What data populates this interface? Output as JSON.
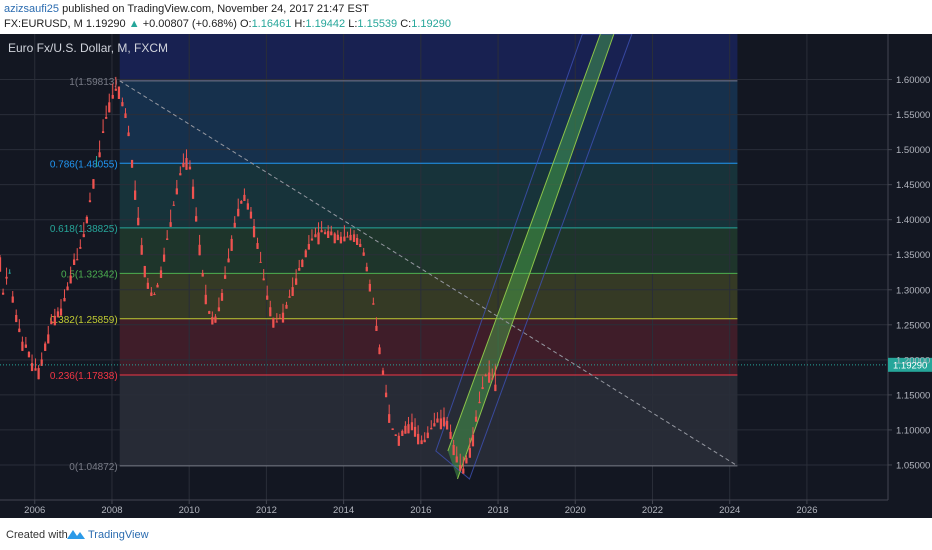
{
  "header": {
    "author": "azizsaufi25",
    "published": "published on TradingView.com, November 24, 2017 21:47 EST",
    "symbol": "FX:EURUSD, M",
    "last": "1.19290",
    "change": "+0.00807 (+0.68%)",
    "o_label": "O:",
    "o": "1.16461",
    "h_label": "H:",
    "h": "1.19442",
    "l_label": "L:",
    "l": "1.15539",
    "c_label": "C:",
    "c": "1.19290"
  },
  "footer": {
    "created_with": "Created with",
    "brand": "TradingView"
  },
  "colors": {
    "background": "#131722",
    "up": "#26a69a",
    "down": "#ef5350",
    "price_tag": "#26a69a",
    "trendline": "#9598a1"
  },
  "chart_data": {
    "type": "candlestick",
    "title": "Euro Fx/U.S. Dollar, M, FXCM",
    "x_ticks": [
      "2006",
      "2008",
      "2010",
      "2012",
      "2014",
      "2016",
      "2018",
      "2020",
      "2022",
      "2024",
      "2026"
    ],
    "y_ticks": [
      "1.60000",
      "1.55000",
      "1.50000",
      "1.45000",
      "1.40000",
      "1.35000",
      "1.30000",
      "1.25000",
      "1.20000",
      "1.15000",
      "1.10000",
      "1.05000"
    ],
    "ylim": [
      1.0,
      1.665
    ],
    "xlim": [
      2005.1,
      2028.1
    ],
    "current_price": 1.1929,
    "current_price_label": "1.19290",
    "fibonacci": {
      "x_start": 2008.2,
      "x_end": 2024.2,
      "levels": [
        {
          "label": "1(1.59813)",
          "ratio": 1,
          "price": 1.59813,
          "color": "#787b86"
        },
        {
          "label": "0.786(1.48055)",
          "ratio": 0.786,
          "price": 1.48055,
          "color": "#2196f3"
        },
        {
          "label": "0.618(1.38825)",
          "ratio": 0.618,
          "price": 1.38825,
          "color": "#26a69a"
        },
        {
          "label": "0.5(1.32342)",
          "ratio": 0.5,
          "price": 1.32342,
          "color": "#4caf50"
        },
        {
          "label": "0.382(1.25859)",
          "ratio": 0.382,
          "price": 1.25859,
          "color": "#c0ca33"
        },
        {
          "label": "0.236(1.17838)",
          "ratio": 0.236,
          "price": 1.17838,
          "color": "#f23645"
        },
        {
          "label": "0(1.04872)",
          "ratio": 0,
          "price": 1.04872,
          "color": "#787b86"
        }
      ]
    },
    "trendline": {
      "x1": 2008.2,
      "y1": 1.59813,
      "x2": 2024.2,
      "y2": 1.04872
    },
    "channel": {
      "lower_start": [
        2016.95,
        1.03
      ],
      "lower_end": [
        2021.0,
        1.665
      ],
      "upper_start": [
        2016.7,
        1.07
      ],
      "upper_end": [
        2020.65,
        1.665
      ]
    },
    "ohlc": [
      [
        2005.1,
        1.3464,
        1.3497,
        1.3268,
        1.3258
      ],
      [
        2005.18,
        1.2958,
        1.3016,
        1.2961,
        1.293
      ],
      [
        2005.27,
        1.3185,
        1.3316,
        1.3073,
        1.3159
      ],
      [
        2005.35,
        1.324,
        1.3293,
        1.3229,
        1.3244
      ],
      [
        2005.43,
        1.2904,
        1.2982,
        1.2916,
        1.2816
      ],
      [
        2005.52,
        1.264,
        1.2719,
        1.2672,
        1.2539
      ],
      [
        2005.6,
        1.2446,
        1.2581,
        1.2434,
        1.2396
      ],
      [
        2005.68,
        1.2259,
        1.2332,
        1.2296,
        1.2128
      ],
      [
        2005.77,
        1.2219,
        1.2327,
        1.2264,
        1.2172
      ],
      [
        2005.85,
        1.2112,
        1.2126,
        1.2046,
        1.2036
      ],
      [
        2005.93,
        1.1954,
        1.2076,
        1.1997,
        1.184
      ],
      [
        2006.02,
        1.188,
        1.202,
        1.1942,
        1.1846
      ],
      [
        2006.1,
        1.1883,
        1.1925,
        1.1826,
        1.1723
      ],
      [
        2006.18,
        1.2006,
        1.2106,
        1.209,
        1.1914
      ],
      [
        2006.27,
        1.2233,
        1.2261,
        1.2168,
        1.2127
      ],
      [
        2006.35,
        1.2363,
        1.2484,
        1.2499,
        1.2233
      ],
      [
        2006.43,
        1.2554,
        1.2653,
        1.2592,
        1.2509
      ],
      [
        2006.52,
        1.2627,
        1.2728,
        1.2726,
        1.2493
      ],
      [
        2006.6,
        1.2692,
        1.275,
        1.2667,
        1.2607
      ],
      [
        2006.68,
        1.2732,
        1.2867,
        1.2888,
        1.2631
      ],
      [
        2006.77,
        1.2883,
        1.3007,
        1.3013,
        1.2835
      ],
      [
        2006.85,
        1.3047,
        1.3108,
        1.3109,
        1.2993
      ],
      [
        2006.93,
        1.3202,
        1.3331,
        1.3318,
        1.309
      ],
      [
        2007.02,
        1.3433,
        1.3519,
        1.3412,
        1.3354
      ],
      [
        2007.1,
        1.3436,
        1.3594,
        1.3483,
        1.3421
      ],
      [
        2007.18,
        1.3609,
        1.372,
        1.3663,
        1.3585
      ],
      [
        2007.27,
        1.3794,
        1.3965,
        1.3864,
        1.3751
      ],
      [
        2007.35,
        1.404,
        1.4063,
        1.4012,
        1.3948
      ],
      [
        2007.43,
        1.4277,
        1.4387,
        1.4372,
        1.425
      ],
      [
        2007.52,
        1.4579,
        1.4567,
        1.4654,
        1.4442
      ],
      [
        2007.6,
        1.4766,
        1.4909,
        1.4802,
        1.4771
      ],
      [
        2007.68,
        1.4962,
        1.513,
        1.5073,
        1.4891
      ],
      [
        2007.77,
        1.5262,
        1.5433,
        1.5379,
        1.5237
      ],
      [
        2007.85,
        1.5465,
        1.5629,
        1.5502,
        1.544
      ],
      [
        2007.93,
        1.5675,
        1.5799,
        1.5671,
        1.5531
      ],
      [
        2008.02,
        1.578,
        1.5944,
        1.5874,
        1.5727
      ],
      [
        2008.1,
        1.5868,
        1.6038,
        1.5919,
        1.584
      ],
      [
        2008.18,
        1.5901,
        1.5879,
        1.5931,
        1.5723
      ],
      [
        2008.27,
        1.5678,
        1.5743,
        1.5648,
        1.5619
      ],
      [
        2008.35,
        1.5517,
        1.5592,
        1.5512,
        1.5451
      ],
      [
        2008.43,
        1.5245,
        1.5341,
        1.5213,
        1.5193
      ],
      [
        2008.52,
        1.4853,
        1.4833,
        1.4871,
        1.4741
      ],
      [
        2008.6,
        1.4417,
        1.456,
        1.4425,
        1.4283
      ],
      [
        2008.68,
        1.4027,
        1.4181,
        1.3969,
        1.392
      ],
      [
        2008.77,
        1.3637,
        1.3741,
        1.3598,
        1.35
      ],
      [
        2008.85,
        1.334,
        1.3323,
        1.341,
        1.3179
      ],
      [
        2008.93,
        1.31,
        1.3169,
        1.3066,
        1.3013
      ],
      [
        2009.02,
        1.2961,
        1.3039,
        1.3015,
        1.2912
      ],
      [
        2009.1,
        1.2939,
        1.2964,
        1.2932,
        1.293
      ],
      [
        2009.18,
        1.3071,
        1.3098,
        1.3041,
        1.3033
      ],
      [
        2009.27,
        1.3278,
        1.3332,
        1.3304,
        1.3169
      ],
      [
        2009.35,
        1.3503,
        1.36,
        1.3477,
        1.34
      ],
      [
        2009.43,
        1.3732,
        1.3852,
        1.3787,
        1.3711
      ],
      [
        2009.52,
        1.3965,
        1.4144,
        1.4034,
        1.3898
      ],
      [
        2009.6,
        1.4213,
        1.4265,
        1.4222,
        1.4198
      ],
      [
        2009.68,
        1.4447,
        1.4567,
        1.4512,
        1.4361
      ],
      [
        2009.77,
        1.4664,
        1.4761,
        1.466,
        1.4633
      ],
      [
        2009.85,
        1.4811,
        1.4946,
        1.4827,
        1.475
      ],
      [
        2009.93,
        1.488,
        1.5003,
        1.4859,
        1.4712
      ],
      [
        2010.02,
        1.4756,
        1.4848,
        1.4766,
        1.4717
      ],
      [
        2010.1,
        1.4471,
        1.4576,
        1.4375,
        1.4298
      ],
      [
        2010.18,
        1.4051,
        1.4177,
        1.4098,
        1.3973
      ],
      [
        2010.27,
        1.3642,
        1.3783,
        1.3638,
        1.3492
      ],
      [
        2010.35,
        1.3238,
        1.3284,
        1.3293,
        1.3188
      ],
      [
        2010.43,
        1.2928,
        1.3072,
        1.2953,
        1.2794
      ],
      [
        2010.52,
        1.2696,
        1.27,
        1.2691,
        1.2656
      ],
      [
        2010.6,
        1.2612,
        1.2691,
        1.2573,
        1.2504
      ],
      [
        2010.68,
        1.2618,
        1.2653,
        1.2631,
        1.253
      ],
      [
        2010.77,
        1.2749,
        1.289,
        1.2767,
        1.2694
      ],
      [
        2010.85,
        1.2954,
        1.3011,
        1.2908,
        1.2843
      ],
      [
        2010.93,
        1.3208,
        1.3335,
        1.3275,
        1.3156
      ],
      [
        2011.02,
        1.3446,
        1.359,
        1.3476,
        1.3391
      ],
      [
        2011.1,
        1.3726,
        1.3778,
        1.3663,
        1.3555
      ],
      [
        2011.18,
        1.3955,
        1.4051,
        1.4,
        1.3888
      ],
      [
        2011.27,
        1.4155,
        1.4301,
        1.4182,
        1.4048
      ],
      [
        2011.35,
        1.4267,
        1.428,
        1.4336,
        1.4228
      ],
      [
        2011.43,
        1.4354,
        1.4446,
        1.4284,
        1.4267
      ],
      [
        2011.52,
        1.4234,
        1.4298,
        1.4291,
        1.4144
      ],
      [
        2011.6,
        1.4115,
        1.4181,
        1.4102,
        1.4016
      ],
      [
        2011.68,
        1.391,
        1.401,
        1.3918,
        1.3749
      ],
      [
        2011.77,
        1.3667,
        1.3743,
        1.3704,
        1.3583
      ],
      [
        2011.85,
        1.3398,
        1.3541,
        1.3452,
        1.3388
      ],
      [
        2011.93,
        1.3161,
        1.3295,
        1.3153,
        1.3135
      ],
      [
        2012.02,
        1.2917,
        1.3059,
        1.2878,
        1.2858
      ],
      [
        2012.1,
        1.2751,
        1.2843,
        1.2708,
        1.2621
      ],
      [
        2012.18,
        1.2601,
        1.2601,
        1.268,
        1.2459
      ],
      [
        2012.27,
        1.2547,
        1.2667,
        1.2576,
        1.2537
      ],
      [
        2012.35,
        1.26,
        1.2654,
        1.2684,
        1.2588
      ],
      [
        2012.43,
        1.2673,
        1.28,
        1.2699,
        1.2532
      ],
      [
        2012.52,
        1.2784,
        1.2828,
        1.2737,
        1.273
      ],
      [
        2012.6,
        1.2906,
        1.3002,
        1.2949,
        1.2886
      ],
      [
        2012.68,
        1.3038,
        1.3176,
        1.3113,
        1.2912
      ],
      [
        2012.77,
        1.3162,
        1.3293,
        1.3189,
        1.3071
      ],
      [
        2012.85,
        1.3311,
        1.3426,
        1.3392,
        1.3272
      ],
      [
        2012.93,
        1.3426,
        1.3441,
        1.3453,
        1.3324
      ],
      [
        2013.02,
        1.3562,
        1.3581,
        1.3569,
        1.3464
      ],
      [
        2013.1,
        1.3653,
        1.3781,
        1.3713,
        1.3573
      ],
      [
        2013.18,
        1.3731,
        1.3863,
        1.3778,
        1.3702
      ],
      [
        2013.27,
        1.3792,
        1.3887,
        1.3805,
        1.375
      ],
      [
        2013.35,
        1.3818,
        1.3963,
        1.3844,
        1.3649
      ],
      [
        2013.43,
        1.3851,
        1.398,
        1.3863,
        1.3821
      ],
      [
        2013.52,
        1.3822,
        1.3863,
        1.3931,
        1.3793
      ],
      [
        2013.6,
        1.3837,
        1.3921,
        1.3918,
        1.3739
      ],
      [
        2013.68,
        1.3831,
        1.3913,
        1.3911,
        1.3778
      ],
      [
        2013.77,
        1.3803,
        1.3822,
        1.3842,
        1.3664
      ],
      [
        2013.85,
        1.3785,
        1.3849,
        1.3737,
        1.3709
      ],
      [
        2013.93,
        1.3757,
        1.3825,
        1.3749,
        1.3662
      ],
      [
        2014.02,
        1.3759,
        1.392,
        1.3791,
        1.3691
      ],
      [
        2014.1,
        1.376,
        1.3829,
        1.3768,
        1.3745
      ],
      [
        2014.18,
        1.3783,
        1.3876,
        1.384,
        1.3706
      ],
      [
        2014.27,
        1.3791,
        1.3851,
        1.3862,
        1.3683
      ],
      [
        2014.35,
        1.3739,
        1.3794,
        1.374,
        1.3639
      ],
      [
        2014.43,
        1.3654,
        1.3724,
        1.3686,
        1.361
      ],
      [
        2014.52,
        1.3533,
        1.3597,
        1.3576,
        1.3485
      ],
      [
        2014.6,
        1.3327,
        1.3386,
        1.3321,
        1.3263
      ],
      [
        2014.68,
        1.3083,
        1.3146,
        1.3085,
        1.2975
      ],
      [
        2014.77,
        1.2807,
        1.2888,
        1.2814,
        1.2787
      ],
      [
        2014.85,
        1.2485,
        1.2607,
        1.2525,
        1.2412
      ],
      [
        2014.93,
        1.2178,
        1.222,
        1.2158,
        1.2081
      ],
      [
        2015.02,
        1.1849,
        1.1887,
        1.1927,
        1.1789
      ],
      [
        2015.1,
        1.1532,
        1.1644,
        1.16,
        1.1467
      ],
      [
        2015.18,
        1.1225,
        1.1361,
        1.127,
        1.1101
      ],
      [
        2015.27,
        1.1022,
        1.1018,
        1.1062,
        1.0999
      ],
      [
        2015.35,
        1.0936,
        1.0938,
        1.0948,
        1.0914
      ],
      [
        2015.43,
        1.0916,
        1.0962,
        1.0884,
        1.0773
      ],
      [
        2015.52,
        1.0987,
        1.1006,
        1.1009,
        1.0914
      ],
      [
        2015.6,
        1.1059,
        1.1124,
        1.1047,
        1.0946
      ],
      [
        2015.68,
        1.1082,
        1.1185,
        1.1071,
        1.0951
      ],
      [
        2015.77,
        1.111,
        1.1233,
        1.1052,
        1.0996
      ],
      [
        2015.85,
        1.1043,
        1.1167,
        1.1075,
        1.0903
      ],
      [
        2015.93,
        1.0943,
        1.1066,
        1.095,
        1.0795
      ],
      [
        2016.02,
        1.0852,
        1.0921,
        1.0928,
        1.0798
      ],
      [
        2016.1,
        1.086,
        1.0967,
        1.0898,
        1.0825
      ],
      [
        2016.18,
        1.0961,
        1.1052,
        1.0967,
        1.0883
      ],
      [
        2016.27,
        1.1029,
        1.1139,
        1.1071,
        1.1008
      ],
      [
        2016.35,
        1.1096,
        1.1244,
        1.1111,
        1.1049
      ],
      [
        2016.43,
        1.1163,
        1.1253,
        1.1135,
        1.1105
      ],
      [
        2016.52,
        1.1164,
        1.1288,
        1.123,
        1.101
      ],
      [
        2016.6,
        1.118,
        1.132,
        1.1217,
        1.105
      ],
      [
        2016.68,
        1.1128,
        1.1184,
        1.1116,
        1.1006
      ],
      [
        2016.77,
        1.0973,
        1.1077,
        1.1062,
        1.0872
      ],
      [
        2016.85,
        1.0785,
        1.0857,
        1.0807,
        1.0641
      ],
      [
        2016.93,
        1.0621,
        1.0764,
        1.0661,
        1.0535
      ],
      [
        2017.02,
        1.05,
        1.0661,
        1.046,
        1.0418
      ],
      [
        2017.1,
        1.045,
        1.062,
        1.0659,
        1.0376
      ],
      [
        2017.18,
        1.0602,
        1.0638,
        1.0584,
        1.0521
      ],
      [
        2017.27,
        1.0741,
        1.0887,
        1.0789,
        1.0603
      ],
      [
        2017.35,
        1.093,
        1.104,
        1.1005,
        1.0766
      ],
      [
        2017.43,
        1.1189,
        1.1281,
        1.1261,
        1.1117
      ],
      [
        2017.52,
        1.14,
        1.1548,
        1.1432,
        1.1382
      ],
      [
        2017.6,
        1.161,
        1.1765,
        1.1636,
        1.1583
      ],
      [
        2017.68,
        1.1781,
        1.1803,
        1.1874,
        1.1765
      ],
      [
        2017.77,
        1.1819,
        1.1992,
        1.191,
        1.1674
      ],
      [
        2017.85,
        1.1734,
        1.1877,
        1.1819,
        1.1719
      ],
      [
        2017.93,
        1.1646,
        1.1944,
        1.1929,
        1.1554
      ]
    ]
  }
}
